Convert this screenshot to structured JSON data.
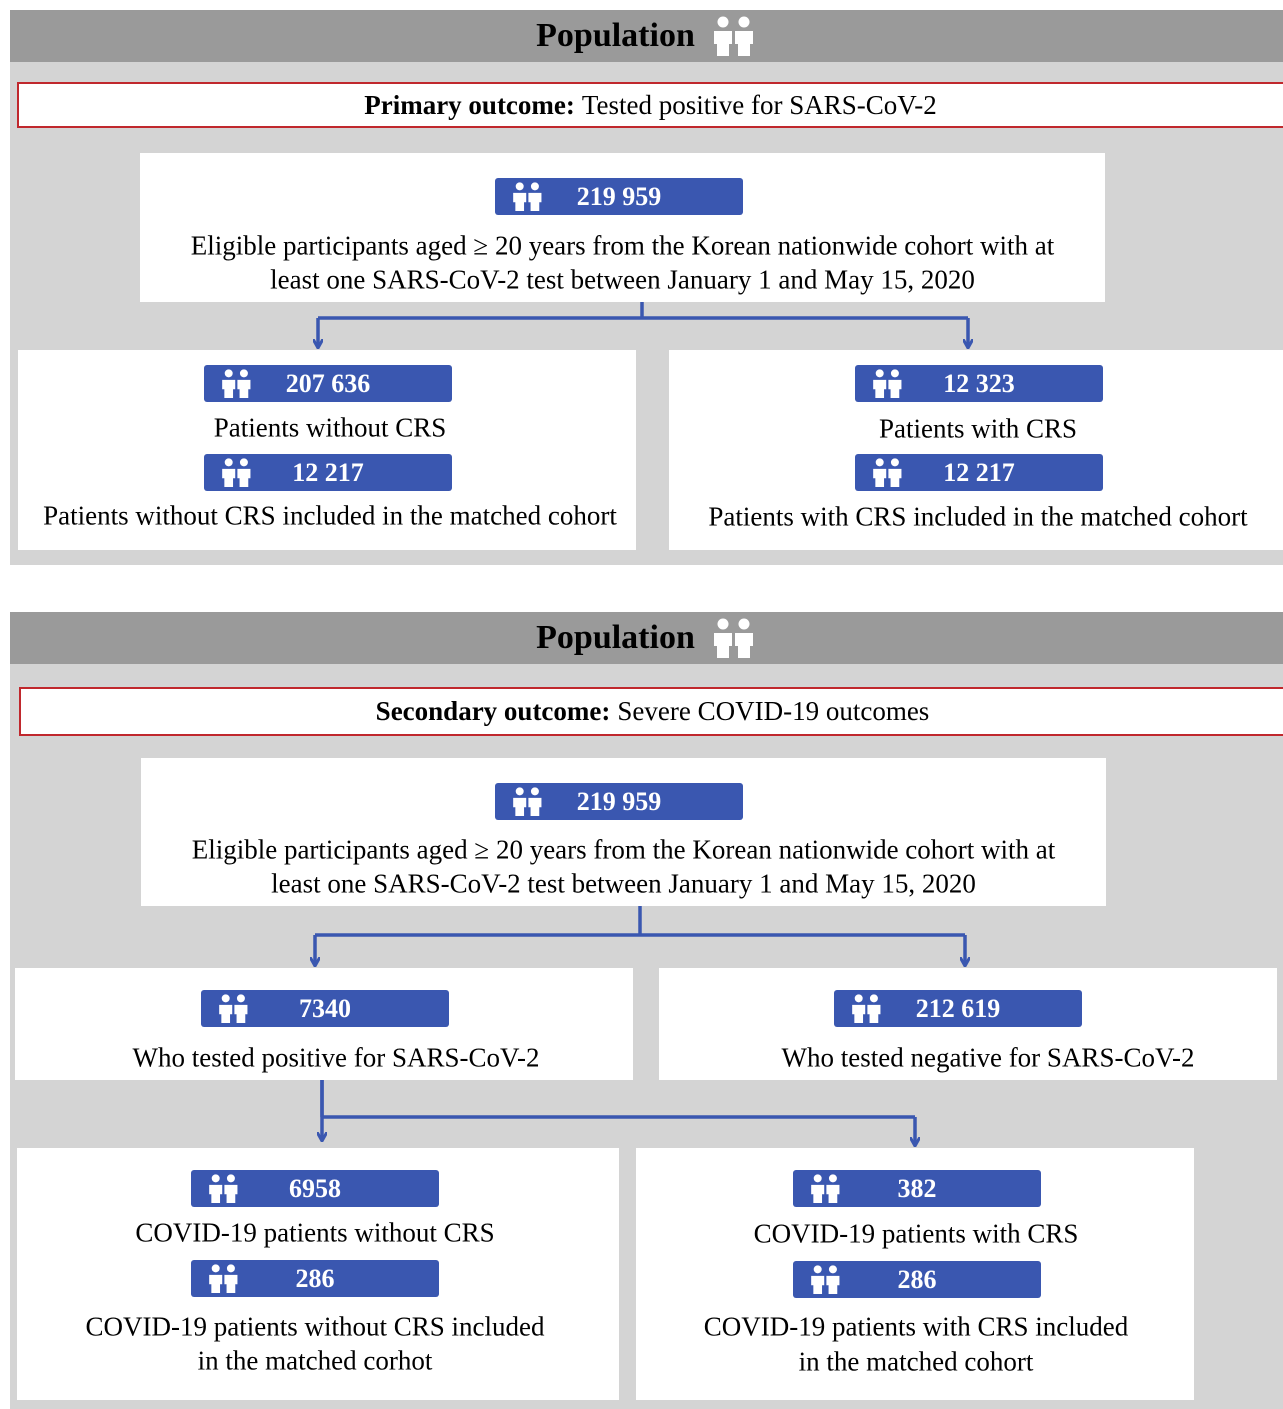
{
  "panels": [
    {
      "header": "Population",
      "outcome_label": "Primary outcome:",
      "outcome_text": "Tested positive for SARS-CoV-2",
      "root": {
        "count": "219 959",
        "lines": [
          "Eligible participants aged ≥ 20 years from the Korean nationwide cohort with at",
          "least one SARS-CoV-2 test between January 1 and May 15, 2020"
        ]
      },
      "levels": [
        [
          {
            "items": [
              {
                "count": "207 636",
                "lines": [
                  "Patients without CRS"
                ]
              },
              {
                "count": "12 217",
                "lines": [
                  "Patients without CRS included in the matched cohort"
                ]
              }
            ]
          },
          {
            "items": [
              {
                "count": "12 323",
                "lines": [
                  "Patients with CRS"
                ]
              },
              {
                "count": "12 217",
                "lines": [
                  "Patients with CRS included in the matched cohort"
                ]
              }
            ]
          }
        ]
      ]
    },
    {
      "header": "Population",
      "outcome_label": "Secondary outcome:",
      "outcome_text": "Severe COVID-19 outcomes",
      "root": {
        "count": "219 959",
        "lines": [
          "Eligible participants aged ≥ 20 years from the Korean nationwide cohort with at",
          "least one SARS-CoV-2 test between January 1 and May 15, 2020"
        ]
      },
      "levels": [
        [
          {
            "items": [
              {
                "count": "7340",
                "lines": [
                  "Who tested positive for SARS-CoV-2"
                ]
              }
            ]
          },
          {
            "items": [
              {
                "count": "212 619",
                "lines": [
                  "Who tested negative for SARS-CoV-2"
                ]
              }
            ]
          }
        ],
        [
          {
            "items": [
              {
                "count": "6958",
                "lines": [
                  "COVID-19 patients without CRS"
                ]
              },
              {
                "count": "286",
                "lines": [
                  "COVID-19 patients without CRS included",
                  "in the matched corhot"
                ]
              }
            ]
          },
          {
            "items": [
              {
                "count": "382",
                "lines": [
                  "COVID-19 patients with CRS"
                ]
              },
              {
                "count": "286",
                "lines": [
                  "COVID-19 patients with CRS included",
                  "in the matched cohort"
                ]
              }
            ]
          }
        ]
      ]
    }
  ]
}
